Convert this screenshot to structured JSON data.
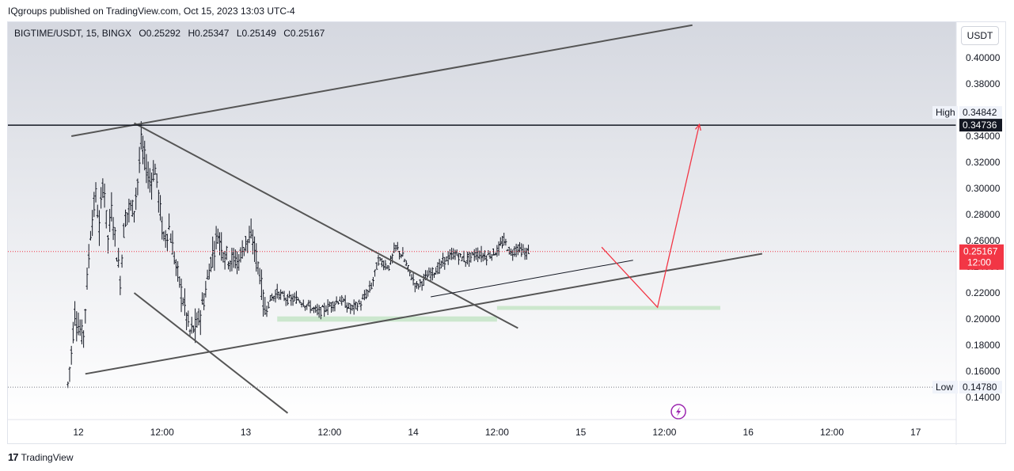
{
  "header": {
    "publish_text": "IQgroups published on TradingView.com, Oct 15, 2023 13:03 UTC-4"
  },
  "legend": {
    "symbol": "BIGTIME/USDT, 15, BINGX",
    "open": "O0.25292",
    "high": "H0.25347",
    "low": "L0.25149",
    "close": "C0.25167"
  },
  "currency_button": "USDT",
  "footer": {
    "brand": "TradingView",
    "logo_text": "17"
  },
  "colors": {
    "bar": "#131722",
    "trendline": "#555555",
    "last_price": "#f23645",
    "projection": "#f23645",
    "zone": "#c8e6c9",
    "axis_text": "#131722"
  },
  "icons": {
    "lightning": "lightning-event-icon"
  },
  "chart_data": {
    "type": "ohlc",
    "title": "BIGTIME/USDT, 15, BINGX",
    "ylim": [
      0.13,
      0.435
    ],
    "y_ticks": [
      "0.14000",
      "0.16000",
      "0.18000",
      "0.20000",
      "0.22000",
      "0.24000",
      "0.26000",
      "0.28000",
      "0.30000",
      "0.32000",
      "0.34000",
      "0.36000",
      "0.38000",
      "0.40000"
    ],
    "x_ticks": [
      "12",
      "12:00",
      "13",
      "12:00",
      "14",
      "12:00",
      "15",
      "12:00",
      "16",
      "12:00",
      "17"
    ],
    "x_tick_hours": [
      0,
      12,
      24,
      36,
      48,
      60,
      72,
      84,
      96,
      108,
      120
    ],
    "high": {
      "label": "High",
      "value": "0.34842"
    },
    "low": {
      "label": "Low",
      "value": "0.14780"
    },
    "crosshair_value": "0.34736",
    "last_price": {
      "value": "0.25167",
      "countdown": "12:00"
    },
    "price_path": [
      [
        -1.5,
        0.15
      ],
      [
        -1,
        0.175
      ],
      [
        -0.5,
        0.205
      ],
      [
        0,
        0.195
      ],
      [
        0.7,
        0.185
      ],
      [
        1.2,
        0.225
      ],
      [
        1.8,
        0.27
      ],
      [
        2.5,
        0.295
      ],
      [
        3.0,
        0.27
      ],
      [
        3.6,
        0.31
      ],
      [
        4.2,
        0.26
      ],
      [
        4.8,
        0.285
      ],
      [
        5.4,
        0.255
      ],
      [
        6.0,
        0.23
      ],
      [
        6.6,
        0.275
      ],
      [
        7.2,
        0.285
      ],
      [
        8.0,
        0.285
      ],
      [
        8.6,
        0.31
      ],
      [
        9.0,
        0.335
      ],
      [
        9.6,
        0.32
      ],
      [
        10.2,
        0.305
      ],
      [
        11.0,
        0.315
      ],
      [
        11.6,
        0.29
      ],
      [
        12.2,
        0.26
      ],
      [
        13.0,
        0.27
      ],
      [
        14.0,
        0.24
      ],
      [
        15.0,
        0.215
      ],
      [
        16.0,
        0.19
      ],
      [
        17.0,
        0.195
      ],
      [
        18.0,
        0.215
      ],
      [
        19.0,
        0.245
      ],
      [
        20.0,
        0.265
      ],
      [
        21.0,
        0.25
      ],
      [
        22.0,
        0.245
      ],
      [
        23.0,
        0.245
      ],
      [
        24.0,
        0.26
      ],
      [
        25.0,
        0.26
      ],
      [
        26.0,
        0.235
      ],
      [
        26.7,
        0.205
      ],
      [
        27.5,
        0.215
      ],
      [
        28.5,
        0.22
      ],
      [
        30.0,
        0.215
      ],
      [
        31.5,
        0.215
      ],
      [
        33.0,
        0.21
      ],
      [
        34.5,
        0.205
      ],
      [
        36.0,
        0.21
      ],
      [
        37.5,
        0.215
      ],
      [
        39.0,
        0.208
      ],
      [
        40.5,
        0.212
      ],
      [
        42.0,
        0.225
      ],
      [
        43.0,
        0.245
      ],
      [
        44.5,
        0.24
      ],
      [
        45.5,
        0.255
      ],
      [
        46.5,
        0.248
      ],
      [
        47.5,
        0.235
      ],
      [
        48.5,
        0.225
      ],
      [
        49.5,
        0.23
      ],
      [
        50.5,
        0.235
      ],
      [
        51.5,
        0.238
      ],
      [
        52.5,
        0.245
      ],
      [
        54.0,
        0.25
      ],
      [
        55.5,
        0.245
      ],
      [
        57.0,
        0.25
      ],
      [
        58.5,
        0.248
      ],
      [
        60.0,
        0.252
      ],
      [
        61.0,
        0.26
      ],
      [
        62.0,
        0.25
      ],
      [
        63.0,
        0.255
      ],
      [
        64.0,
        0.25
      ],
      [
        64.5,
        0.252
      ]
    ],
    "trendlines": [
      {
        "from": [
          -1.0,
          0.34
        ],
        "to": [
          88.0,
          0.425
        ]
      },
      {
        "from": [
          8.0,
          0.35
        ],
        "to": [
          63.0,
          0.193
        ]
      },
      {
        "from": [
          8.0,
          0.22
        ],
        "to": [
          30.0,
          0.128
        ]
      },
      {
        "from": [
          1.0,
          0.158
        ],
        "to": [
          98.0,
          0.25
        ]
      },
      {
        "from": [
          50.5,
          0.217
        ],
        "to": [
          79.5,
          0.245
        ]
      }
    ],
    "support_zones": [
      {
        "from_hour": 28.5,
        "to_hour": 60.0,
        "low": 0.198,
        "high": 0.202
      },
      {
        "from_hour": 60.0,
        "to_hour": 92.0,
        "low": 0.207,
        "high": 0.21
      }
    ],
    "projection": [
      [
        75.0,
        0.255
      ],
      [
        83.0,
        0.209
      ],
      [
        89.0,
        0.349
      ]
    ],
    "event_marker_hour": 86.0
  }
}
